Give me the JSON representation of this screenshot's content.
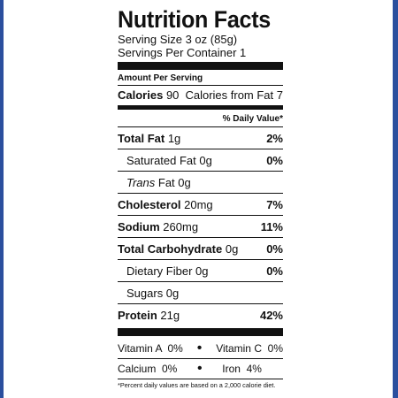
{
  "label": {
    "title": "Nutrition Facts",
    "serving_size": "Serving Size 3 oz (85g)",
    "servings_per_container": "Servings Per Container 1",
    "amount_per_serving": "Amount Per Serving",
    "calories_label": "Calories",
    "calories_value": "90",
    "calories_fat": "Calories from Fat 7",
    "daily_value_header": "% Daily Value*",
    "total_fat_label": "Total Fat",
    "total_fat_amount": "1g",
    "total_fat_dv": "2%",
    "sat_fat_label": "Saturated Fat 0g",
    "sat_fat_dv": "0%",
    "trans_fat_italic": "Trans",
    "trans_fat_rest": "Fat 0g",
    "cholesterol_label": "Cholesterol",
    "cholesterol_amount": "20mg",
    "cholesterol_dv": "7%",
    "sodium_label": "Sodium",
    "sodium_amount": "260mg",
    "sodium_dv": "11%",
    "carb_label": "Total Carbohydrate",
    "carb_amount": "0g",
    "carb_dv": "0%",
    "fiber_label": "Dietary Fiber 0g",
    "fiber_dv": "0%",
    "sugars_label": "Sugars 0g",
    "protein_label": "Protein",
    "protein_amount": "21g",
    "protein_dv": "42%",
    "vitamin_a": "Vitamin A  0%",
    "vitamin_c": "Vitamin C  0%",
    "calcium": "Calcium  0%",
    "iron": "Iron  4%",
    "bullet": "•",
    "footnote": "*Percent daily values are based on a 2,000 calorie diet."
  },
  "colors": {
    "edge": "#2b4f9e",
    "ink": "#111111"
  }
}
